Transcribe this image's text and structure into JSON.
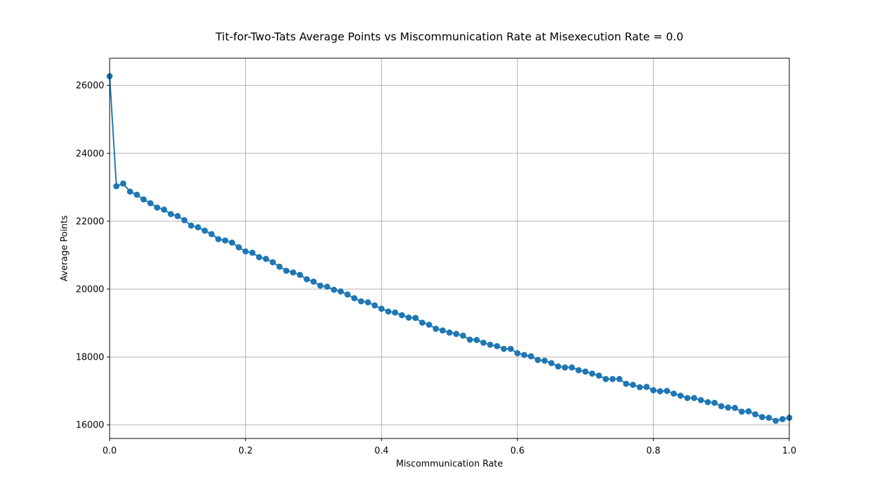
{
  "chart_data": {
    "type": "line",
    "title": "Tit-for-Two-Tats Average Points vs Miscommunication Rate at Misexecution Rate = 0.0",
    "xlabel": "Miscommunication Rate",
    "ylabel": "Average Points",
    "xlim": [
      0.0,
      1.0
    ],
    "ylim": [
      15600,
      26800
    ],
    "grid": true,
    "series_color": "#1f77b4",
    "x_ticks": [
      0.0,
      0.2,
      0.4,
      0.6,
      0.8,
      1.0
    ],
    "x_tick_labels": [
      "0.0",
      "0.2",
      "0.4",
      "0.6",
      "0.8",
      "1.0"
    ],
    "y_ticks": [
      16000,
      18000,
      20000,
      22000,
      24000,
      26000
    ],
    "y_tick_labels": [
      "16000",
      "18000",
      "20000",
      "22000",
      "24000",
      "26000"
    ],
    "x": [
      0.0,
      0.01,
      0.02,
      0.03,
      0.04,
      0.05,
      0.06,
      0.07,
      0.08,
      0.09,
      0.1,
      0.11,
      0.12,
      0.13,
      0.14,
      0.15,
      0.16,
      0.17,
      0.18,
      0.19,
      0.2,
      0.21,
      0.22,
      0.23,
      0.24,
      0.25,
      0.26,
      0.27,
      0.28,
      0.29,
      0.3,
      0.31,
      0.32,
      0.33,
      0.34,
      0.35,
      0.36,
      0.37,
      0.38,
      0.39,
      0.4,
      0.41,
      0.42,
      0.43,
      0.44,
      0.45,
      0.46,
      0.47,
      0.48,
      0.49,
      0.5,
      0.51,
      0.52,
      0.53,
      0.54,
      0.55,
      0.56,
      0.57,
      0.58,
      0.59,
      0.6,
      0.61,
      0.62,
      0.63,
      0.64,
      0.65,
      0.66,
      0.67,
      0.68,
      0.69,
      0.7,
      0.71,
      0.72,
      0.73,
      0.74,
      0.75,
      0.76,
      0.77,
      0.78,
      0.79,
      0.8,
      0.81,
      0.82,
      0.83,
      0.84,
      0.85,
      0.86,
      0.87,
      0.88,
      0.89,
      0.9,
      0.91,
      0.92,
      0.93,
      0.94,
      0.95,
      0.96,
      0.97,
      0.98,
      0.99,
      1.0
    ],
    "values": [
      26270,
      23030,
      23110,
      22870,
      22780,
      22640,
      22530,
      22400,
      22340,
      22210,
      22150,
      22030,
      21870,
      21820,
      21720,
      21620,
      21470,
      21430,
      21370,
      21230,
      21110,
      21070,
      20940,
      20890,
      20790,
      20660,
      20540,
      20490,
      20420,
      20290,
      20220,
      20100,
      20070,
      19980,
      19930,
      19840,
      19730,
      19640,
      19610,
      19520,
      19420,
      19340,
      19310,
      19230,
      19160,
      19150,
      19010,
      18950,
      18830,
      18780,
      18720,
      18680,
      18630,
      18510,
      18500,
      18420,
      18360,
      18320,
      18240,
      18240,
      18110,
      18060,
      18020,
      17910,
      17890,
      17820,
      17720,
      17690,
      17690,
      17610,
      17570,
      17510,
      17450,
      17350,
      17350,
      17350,
      17210,
      17180,
      17110,
      17120,
      17020,
      16990,
      17000,
      16920,
      16860,
      16790,
      16790,
      16730,
      16670,
      16650,
      16550,
      16510,
      16500,
      16390,
      16400,
      16310,
      16230,
      16210,
      16120,
      16170,
      16210
    ]
  }
}
